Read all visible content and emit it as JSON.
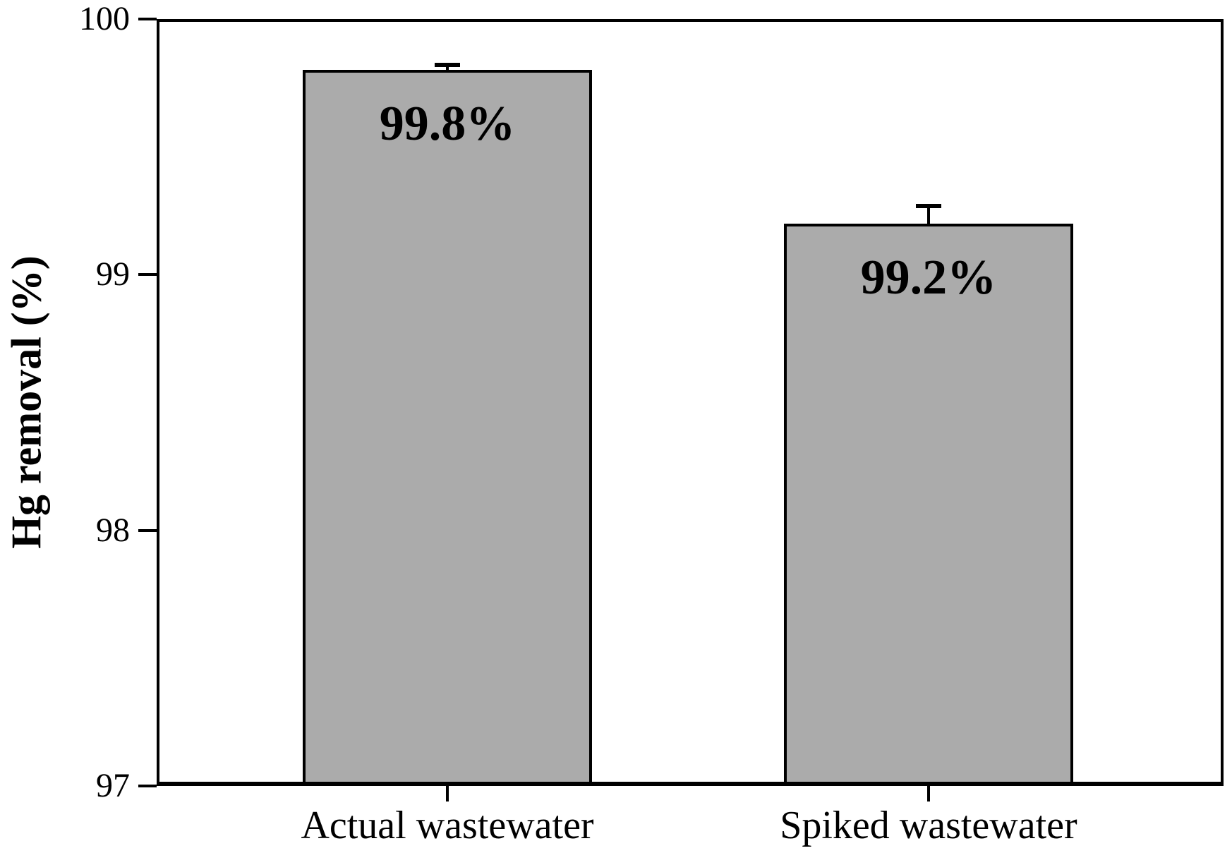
{
  "figure": {
    "background": "#ffffff"
  },
  "chart_data": {
    "type": "bar",
    "title": "",
    "xlabel": "",
    "ylabel": "Hg removal (%)",
    "categories": [
      "Actual wastewater",
      "Spiked wastewater"
    ],
    "series": [
      {
        "name": "Hg removal",
        "values": [
          99.8,
          99.2
        ]
      }
    ],
    "bar_labels": [
      "99.8%",
      "99.2%"
    ],
    "error_bars_plus": [
      0.02,
      0.07
    ],
    "ylim": [
      97,
      100
    ],
    "yticks": [
      100,
      99,
      98,
      97
    ],
    "ytick_labels": [
      "100",
      "99",
      "98",
      "97"
    ],
    "grid": false,
    "legend": null,
    "frame": "full-box",
    "bar_fill_color": "#ababab",
    "bar_border_color": "#000000",
    "axis_color": "#000000",
    "text_color": "#000000"
  }
}
